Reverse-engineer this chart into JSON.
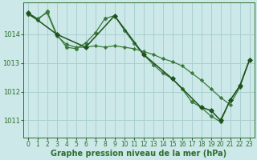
{
  "background_color": "#cce8e8",
  "grid_color": "#aad0d0",
  "line_color": "#2d6e2d",
  "xlabel": "Graphe pression niveau de la mer (hPa)",
  "xlabel_fontsize": 7,
  "tick_fontsize": 6,
  "ytick_labels": [
    1011,
    1012,
    1013,
    1014
  ],
  "ylim": [
    1010.4,
    1015.1
  ],
  "xlim": [
    -0.5,
    23.5
  ],
  "xticks": [
    0,
    1,
    2,
    3,
    4,
    5,
    6,
    7,
    8,
    9,
    10,
    11,
    12,
    13,
    14,
    15,
    16,
    17,
    18,
    19,
    20,
    21,
    22,
    23
  ],
  "series": [
    {
      "x": [
        0,
        1,
        2,
        3,
        4,
        5,
        6,
        7,
        8,
        9,
        10,
        11,
        12,
        13,
        14,
        15,
        16,
        17,
        18,
        19,
        20,
        21,
        22,
        23
      ],
      "y": [
        1014.75,
        1014.55,
        1014.75,
        1013.95,
        1013.65,
        1013.55,
        1013.55,
        1013.6,
        1013.55,
        1013.6,
        1013.55,
        1013.5,
        1013.4,
        1013.3,
        1013.15,
        1013.05,
        1012.9,
        1012.65,
        1012.4,
        1012.1,
        1011.8,
        1011.55,
        1012.15,
        1013.1
      ],
      "color": "#3a7a3a",
      "lw": 0.9,
      "marker": "D",
      "ms": 2.2,
      "mew": 0.5
    },
    {
      "x": [
        0,
        1,
        2,
        3,
        4,
        5,
        6,
        7,
        8,
        9,
        10,
        11,
        12,
        13,
        14,
        15,
        16,
        17,
        18,
        19,
        20,
        21,
        22,
        23
      ],
      "y": [
        1014.7,
        1014.5,
        1014.8,
        1014.0,
        1013.55,
        1013.5,
        1013.7,
        1014.05,
        1014.55,
        1014.65,
        1014.15,
        1013.7,
        1013.3,
        1012.95,
        1012.65,
        1012.45,
        1012.1,
        1011.65,
        1011.45,
        1011.15,
        1010.95,
        1011.7,
        1012.2,
        1013.1
      ],
      "color": "#3a7a3a",
      "lw": 0.9,
      "marker": "P",
      "ms": 2.8,
      "mew": 0.8
    },
    {
      "x": [
        0,
        3,
        6,
        9,
        12,
        15,
        18,
        19,
        20,
        21,
        22,
        23
      ],
      "y": [
        1014.75,
        1014.0,
        1013.55,
        1014.65,
        1013.3,
        1012.45,
        1011.45,
        1011.35,
        1011.0,
        1011.7,
        1012.2,
        1013.1
      ],
      "color": "#1e521e",
      "lw": 1.1,
      "marker": "D",
      "ms": 3.0,
      "mew": 0.6
    }
  ]
}
